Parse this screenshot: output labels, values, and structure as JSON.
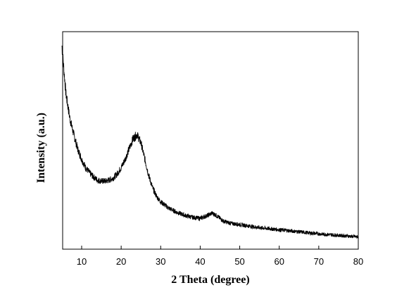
{
  "chart_data": {
    "type": "line",
    "title": "",
    "xlabel": "2 Theta (degree)",
    "ylabel": "Intensity (a.u.)",
    "xlim": [
      5,
      80
    ],
    "ylim": [
      0,
      100
    ],
    "y_ticks_labeled": false,
    "grid": false,
    "legend": "none",
    "x_ticks": [
      10,
      20,
      30,
      40,
      50,
      60,
      70,
      80
    ],
    "series": [
      {
        "color": "#000000",
        "x": [
          5,
          6,
          7,
          8,
          9,
          10,
          11,
          12,
          13,
          14,
          15,
          16,
          17,
          18,
          19,
          20,
          21,
          22,
          23,
          24,
          25,
          26,
          27,
          28,
          29,
          30,
          32,
          34,
          36,
          38,
          40,
          42,
          43,
          44,
          46,
          48,
          50,
          55,
          60,
          65,
          70,
          75,
          80
        ],
        "y": [
          95,
          72,
          60,
          52,
          45,
          40,
          36,
          33.5,
          31.5,
          30,
          29.5,
          29.5,
          30,
          31,
          33,
          36,
          40,
          45,
          50,
          52,
          48,
          40,
          32,
          26,
          22,
          19.5,
          16.5,
          14.5,
          13,
          12,
          11.5,
          13,
          14,
          13,
          10,
          9,
          8.5,
          7,
          6,
          5,
          4,
          3.3,
          2.5
        ]
      }
    ]
  }
}
